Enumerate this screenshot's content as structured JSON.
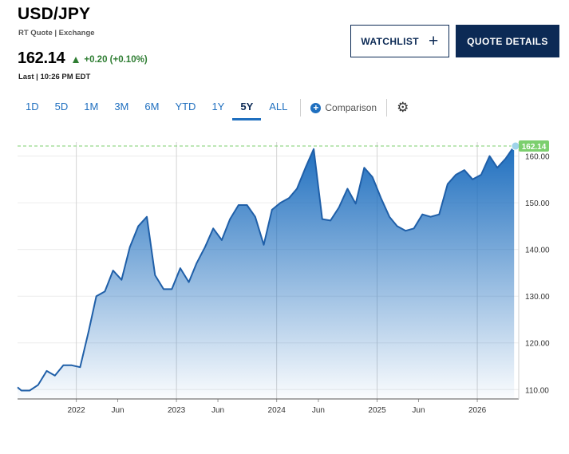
{
  "header": {
    "title": "USD/JPY",
    "subtitle": "RT Quote | Exchange",
    "price": "162.14",
    "change": "+0.20 (+0.10%)",
    "last_update": "Last | 10:26 PM EDT"
  },
  "buttons": {
    "watchlist": "WATCHLIST",
    "watchlist_plus": "+",
    "quote_details": "QUOTE DETAILS"
  },
  "ranges": [
    "1D",
    "5D",
    "1M",
    "3M",
    "6M",
    "YTD",
    "1Y",
    "5Y",
    "ALL"
  ],
  "active_range": "5Y",
  "comparison_label": "Comparison",
  "colors": {
    "accent": "#1f6fbf",
    "navy": "#0c2a55",
    "positive": "#2e7d32",
    "price_marker": "#7ccf6e"
  },
  "icons": [
    "plus-icon",
    "add-comparison-icon",
    "gear-icon",
    "up-triangle-icon"
  ],
  "chart_data": {
    "type": "area",
    "y_axis_position": "right",
    "ylim": [
      108,
      163
    ],
    "yticks": [
      110,
      120,
      130,
      140,
      150,
      160
    ],
    "ytick_labels": [
      "110.00",
      "120.00",
      "130.00",
      "140.00",
      "150.00",
      "160.00"
    ],
    "xlim": [
      "2021-06-01",
      "2026-06-01"
    ],
    "xticks": [
      {
        "label": "2022",
        "x": "2022-01-01",
        "gridline": true
      },
      {
        "label": "Jun",
        "x": "2022-06-01",
        "gridline": false
      },
      {
        "label": "2023",
        "x": "2023-01-01",
        "gridline": true
      },
      {
        "label": "Jun",
        "x": "2023-06-01",
        "gridline": false
      },
      {
        "label": "2024",
        "x": "2024-01-01",
        "gridline": true
      },
      {
        "label": "Jun",
        "x": "2024-06-01",
        "gridline": false
      },
      {
        "label": "2025",
        "x": "2025-01-01",
        "gridline": true
      },
      {
        "label": "Jun",
        "x": "2025-06-01",
        "gridline": false
      },
      {
        "label": "2026",
        "x": "2026-01-01",
        "gridline": true
      }
    ],
    "grid": true,
    "last_value": 162.14,
    "last_value_label": "162.14",
    "points": [
      [
        "2021-06-01",
        110.5
      ],
      [
        "2021-06-15",
        109.8
      ],
      [
        "2021-07-15",
        109.8
      ],
      [
        "2021-08-15",
        111.0
      ],
      [
        "2021-09-15",
        114.0
      ],
      [
        "2021-10-15",
        113.0
      ],
      [
        "2021-11-15",
        115.2
      ],
      [
        "2021-12-15",
        115.2
      ],
      [
        "2022-01-15",
        114.8
      ],
      [
        "2022-02-15",
        122.5
      ],
      [
        "2022-03-15",
        130.0
      ],
      [
        "2022-04-15",
        131.0
      ],
      [
        "2022-05-15",
        135.5
      ],
      [
        "2022-06-15",
        133.5
      ],
      [
        "2022-07-15",
        140.5
      ],
      [
        "2022-08-15",
        145.0
      ],
      [
        "2022-09-15",
        147.0
      ],
      [
        "2022-10-15",
        134.5
      ],
      [
        "2022-11-15",
        131.5
      ],
      [
        "2022-12-15",
        131.5
      ],
      [
        "2023-01-15",
        136.0
      ],
      [
        "2023-02-15",
        133.0
      ],
      [
        "2023-03-15",
        137.0
      ],
      [
        "2023-04-15",
        140.5
      ],
      [
        "2023-05-15",
        144.5
      ],
      [
        "2023-06-15",
        142.0
      ],
      [
        "2023-07-15",
        146.5
      ],
      [
        "2023-08-15",
        149.5
      ],
      [
        "2023-09-15",
        149.5
      ],
      [
        "2023-10-15",
        147.0
      ],
      [
        "2023-11-15",
        141.0
      ],
      [
        "2023-12-15",
        148.5
      ],
      [
        "2024-01-15",
        150.0
      ],
      [
        "2024-02-15",
        151.0
      ],
      [
        "2024-03-15",
        153.0
      ],
      [
        "2024-04-15",
        157.5
      ],
      [
        "2024-05-15",
        161.5
      ],
      [
        "2024-06-15",
        146.5
      ],
      [
        "2024-07-15",
        146.2
      ],
      [
        "2024-08-15",
        149.0
      ],
      [
        "2024-09-15",
        153.0
      ],
      [
        "2024-10-15",
        149.8
      ],
      [
        "2024-11-15",
        157.5
      ],
      [
        "2024-12-15",
        155.5
      ],
      [
        "2025-01-15",
        151.0
      ],
      [
        "2025-02-15",
        147.0
      ],
      [
        "2025-03-15",
        145.0
      ],
      [
        "2025-04-15",
        144.0
      ],
      [
        "2025-05-15",
        144.5
      ],
      [
        "2025-06-15",
        147.5
      ],
      [
        "2025-07-15",
        147.0
      ],
      [
        "2025-08-15",
        147.5
      ],
      [
        "2025-09-15",
        154.0
      ],
      [
        "2025-10-15",
        156.0
      ],
      [
        "2025-11-15",
        157.0
      ],
      [
        "2025-12-15",
        155.0
      ],
      [
        "2026-01-15",
        156.0
      ],
      [
        "2026-02-15",
        160.0
      ],
      [
        "2026-03-15",
        157.5
      ],
      [
        "2026-04-15",
        159.5
      ],
      [
        "2026-05-15",
        162.1
      ]
    ]
  }
}
